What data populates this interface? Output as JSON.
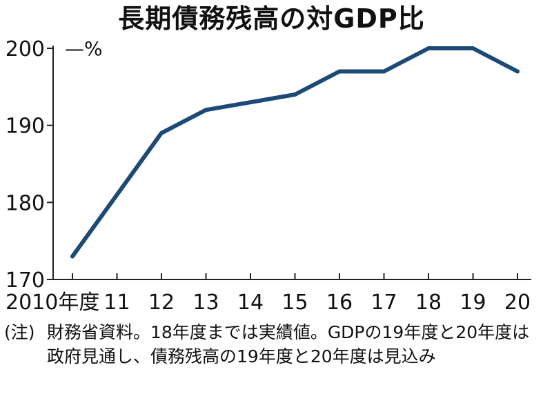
{
  "title": "長期債務残高の対GDP比",
  "chart_data": {
    "type": "line",
    "title": "長期債務残高の対GDP比",
    "unit": "%",
    "xlabel": "",
    "ylabel": "%",
    "categories": [
      "2010年度",
      "11",
      "12",
      "13",
      "14",
      "15",
      "16",
      "17",
      "18",
      "19",
      "20"
    ],
    "series": [
      {
        "name": "長期債務残高の対GDP比",
        "values": [
          173,
          181,
          189,
          192,
          193,
          194,
          197,
          197,
          200,
          200,
          197
        ]
      }
    ],
    "ylim": [
      170,
      200
    ],
    "yticks": [
      170,
      180,
      190,
      200
    ],
    "grid": false,
    "line_color": "#1c4a78"
  },
  "footnote": {
    "prefix": "(注)",
    "text": "財務省資料。18年度までは実績値。GDPの19年度と20年度は政府見通し、債務残高の19年度と20年度は見込み"
  }
}
